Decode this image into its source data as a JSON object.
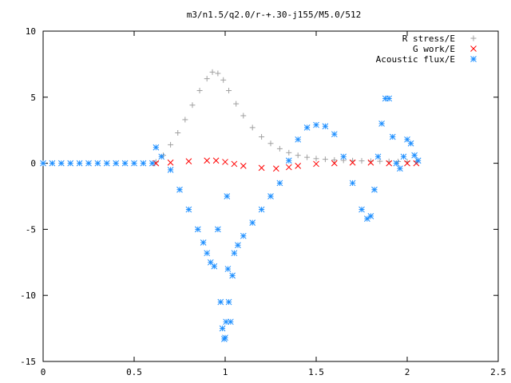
{
  "chart_data": {
    "type": "scatter",
    "title": "m3/n1.5/q2.0/r-+.30-j155/M5.0/512",
    "xlabel": "",
    "ylabel": "",
    "xlim": [
      0,
      2.5
    ],
    "ylim": [
      -15,
      10
    ],
    "x_ticks": [
      0,
      0.5,
      1,
      1.5,
      2,
      2.5
    ],
    "x_tick_labels": [
      "0",
      "0.5",
      "1",
      "1.5",
      "2",
      "2.5"
    ],
    "y_ticks": [
      -15,
      -10,
      -5,
      0,
      5,
      10
    ],
    "y_tick_labels": [
      "-15",
      "-10",
      "-5",
      "0",
      "5",
      "10"
    ],
    "grid": false,
    "legend_position": "top-right",
    "series": [
      {
        "name": "R stress/E",
        "marker": "plus",
        "color": "#a0a0a0",
        "x": [
          0.62,
          0.66,
          0.7,
          0.74,
          0.78,
          0.82,
          0.86,
          0.9,
          0.93,
          0.96,
          0.99,
          1.02,
          1.06,
          1.1,
          1.15,
          1.2,
          1.25,
          1.3,
          1.35,
          1.4,
          1.45,
          1.5,
          1.55,
          1.6,
          1.65,
          1.7,
          1.75,
          1.8,
          1.85,
          1.9,
          1.95,
          2.0,
          2.05
        ],
        "y": [
          0.1,
          0.6,
          1.4,
          2.3,
          3.3,
          4.4,
          5.5,
          6.4,
          6.9,
          6.8,
          6.3,
          5.5,
          4.5,
          3.6,
          2.7,
          2.0,
          1.5,
          1.1,
          0.8,
          0.6,
          0.45,
          0.35,
          0.3,
          0.25,
          0.22,
          0.2,
          0.18,
          0.16,
          0.15,
          0.14,
          0.13,
          0.12,
          0.12
        ]
      },
      {
        "name": "G work/E",
        "marker": "cross",
        "color": "#ff0000",
        "x": [
          0.62,
          0.7,
          0.8,
          0.9,
          0.95,
          1.0,
          1.05,
          1.1,
          1.2,
          1.28,
          1.35,
          1.4,
          1.5,
          1.6,
          1.7,
          1.8,
          1.9,
          2.0,
          2.05
        ],
        "y": [
          0.0,
          0.05,
          0.15,
          0.2,
          0.2,
          0.1,
          -0.05,
          -0.2,
          -0.35,
          -0.4,
          -0.3,
          -0.2,
          -0.05,
          0.0,
          0.05,
          0.05,
          0.0,
          0.0,
          0.0
        ]
      },
      {
        "name": "Acoustic flux/E",
        "marker": "asterisk",
        "color": "#1e8fff",
        "x": [
          0,
          0.05,
          0.1,
          0.15,
          0.2,
          0.25,
          0.3,
          0.35,
          0.4,
          0.45,
          0.5,
          0.55,
          0.6,
          0.62,
          0.65,
          0.7,
          0.75,
          0.8,
          0.85,
          0.88,
          0.9,
          0.92,
          0.94,
          0.96,
          0.975,
          0.985,
          0.995,
          1.0,
          1.005,
          1.01,
          1.015,
          1.02,
          1.03,
          1.04,
          1.05,
          1.07,
          1.1,
          1.15,
          1.2,
          1.25,
          1.3,
          1.35,
          1.4,
          1.45,
          1.5,
          1.55,
          1.6,
          1.65,
          1.7,
          1.75,
          1.78,
          1.8,
          1.82,
          1.84,
          1.86,
          1.88,
          1.9,
          1.92,
          1.94,
          1.96,
          1.98,
          2.0,
          2.02,
          2.04,
          2.06
        ],
        "y": [
          0,
          0,
          0,
          0,
          0,
          0,
          0,
          0,
          0,
          0,
          0,
          0,
          0,
          1.2,
          0.5,
          -0.5,
          -2.0,
          -3.5,
          -5.0,
          -6.0,
          -6.8,
          -7.5,
          -7.8,
          -5.0,
          -10.5,
          -12.5,
          -13.3,
          -13.2,
          -12.0,
          -2.5,
          -8.0,
          -10.5,
          -12.0,
          -8.5,
          -6.8,
          -6.2,
          -5.5,
          -4.5,
          -3.5,
          -2.5,
          -1.5,
          0.2,
          1.8,
          2.7,
          2.9,
          2.8,
          2.2,
          0.5,
          -1.5,
          -3.5,
          -4.2,
          -4.0,
          -2.0,
          0.5,
          3.0,
          4.9,
          4.9,
          2.0,
          0.0,
          -0.4,
          0.5,
          1.8,
          1.5,
          0.6,
          0.2
        ]
      }
    ]
  }
}
